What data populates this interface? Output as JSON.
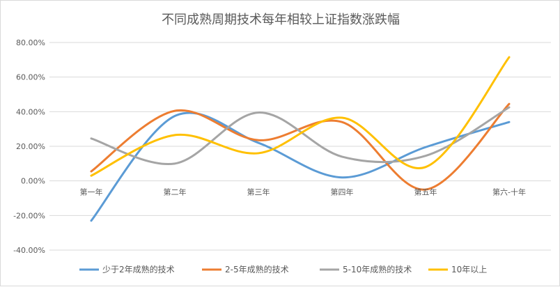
{
  "chart_data": {
    "type": "line",
    "title": "不同成熟周期技术每年相较上证指数涨跌幅",
    "xlabel": "",
    "ylabel": "",
    "categories": [
      "第一年",
      "第二年",
      "第三年",
      "第四年",
      "第五年",
      "第六-十年"
    ],
    "ylim": [
      -40,
      80
    ],
    "yticks": [
      -40,
      -20,
      0,
      20,
      40,
      60,
      80
    ],
    "ytick_labels": [
      "-40.00%",
      "-20.00%",
      "0.00%",
      "20.00%",
      "40.00%",
      "60.00%",
      "80.00%"
    ],
    "grid": true,
    "smooth": true,
    "legend_position": "bottom",
    "series": [
      {
        "name": "少于2年成熟的技术",
        "values": [
          -23,
          37.5,
          22,
          2,
          19.5,
          34
        ],
        "color": "#5b9bd5"
      },
      {
        "name": "2-5年成熟的技术",
        "values": [
          5.5,
          40.5,
          23.5,
          34,
          -5,
          44.5
        ],
        "color": "#ed7d31"
      },
      {
        "name": "5-10年成熟的技术",
        "values": [
          24.5,
          10,
          39.5,
          14,
          14.5,
          42.5
        ],
        "color": "#a5a5a5"
      },
      {
        "name": "10年以上",
        "values": [
          3,
          26.5,
          16,
          36.5,
          8,
          71.5
        ],
        "color": "#ffc000"
      }
    ]
  }
}
